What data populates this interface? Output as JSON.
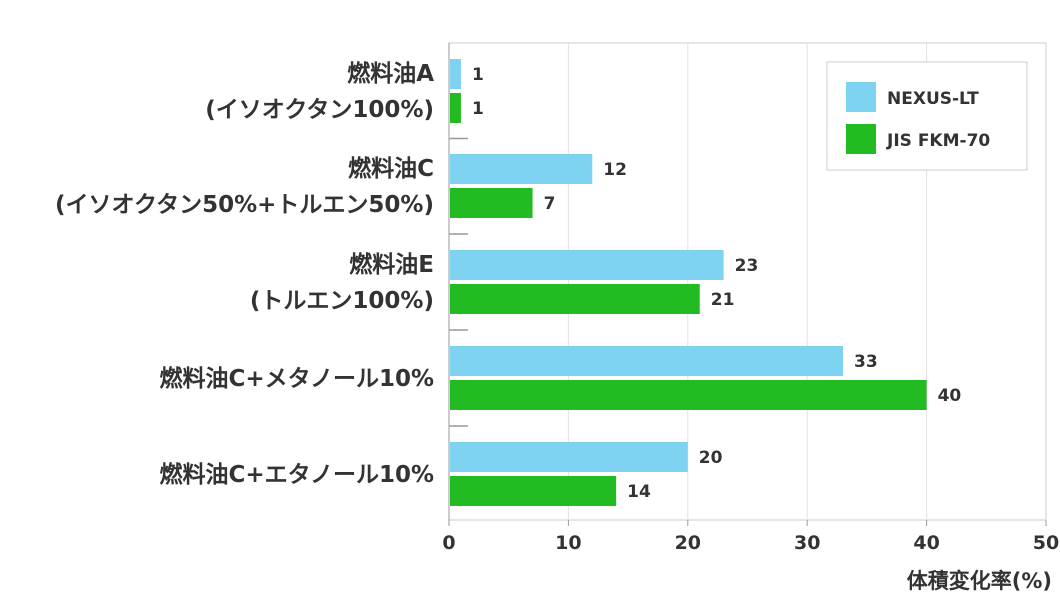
{
  "chart_data": {
    "type": "bar",
    "orientation": "horizontal",
    "categories": [
      [
        "燃料油A",
        "(イソオクタン100%)"
      ],
      [
        "燃料油C",
        "(イソオクタン50%+トルエン50%)"
      ],
      [
        "燃料油E",
        "(トルエン100%)"
      ],
      [
        "燃料油C+メタノール10%"
      ],
      [
        "燃料油C+エタノール10%"
      ]
    ],
    "series": [
      {
        "name": "NEXUS-LT",
        "color": "#7ed3f2",
        "values": [
          1,
          12,
          23,
          33,
          20
        ]
      },
      {
        "name": "JIS FKM-70",
        "color": "#22bb22",
        "values": [
          1,
          7,
          21,
          40,
          14
        ]
      }
    ],
    "title": "",
    "xlabel": "体積変化率(%)",
    "ylabel": "",
    "xlim": [
      0,
      50
    ],
    "xticks": [
      0,
      10,
      20,
      30,
      40,
      50
    ],
    "value_labels": [
      "1",
      "12",
      "23",
      "33",
      "20",
      "1",
      "7",
      "21",
      "40",
      "14"
    ],
    "grid": "vertical",
    "legend_position": "top-right"
  }
}
